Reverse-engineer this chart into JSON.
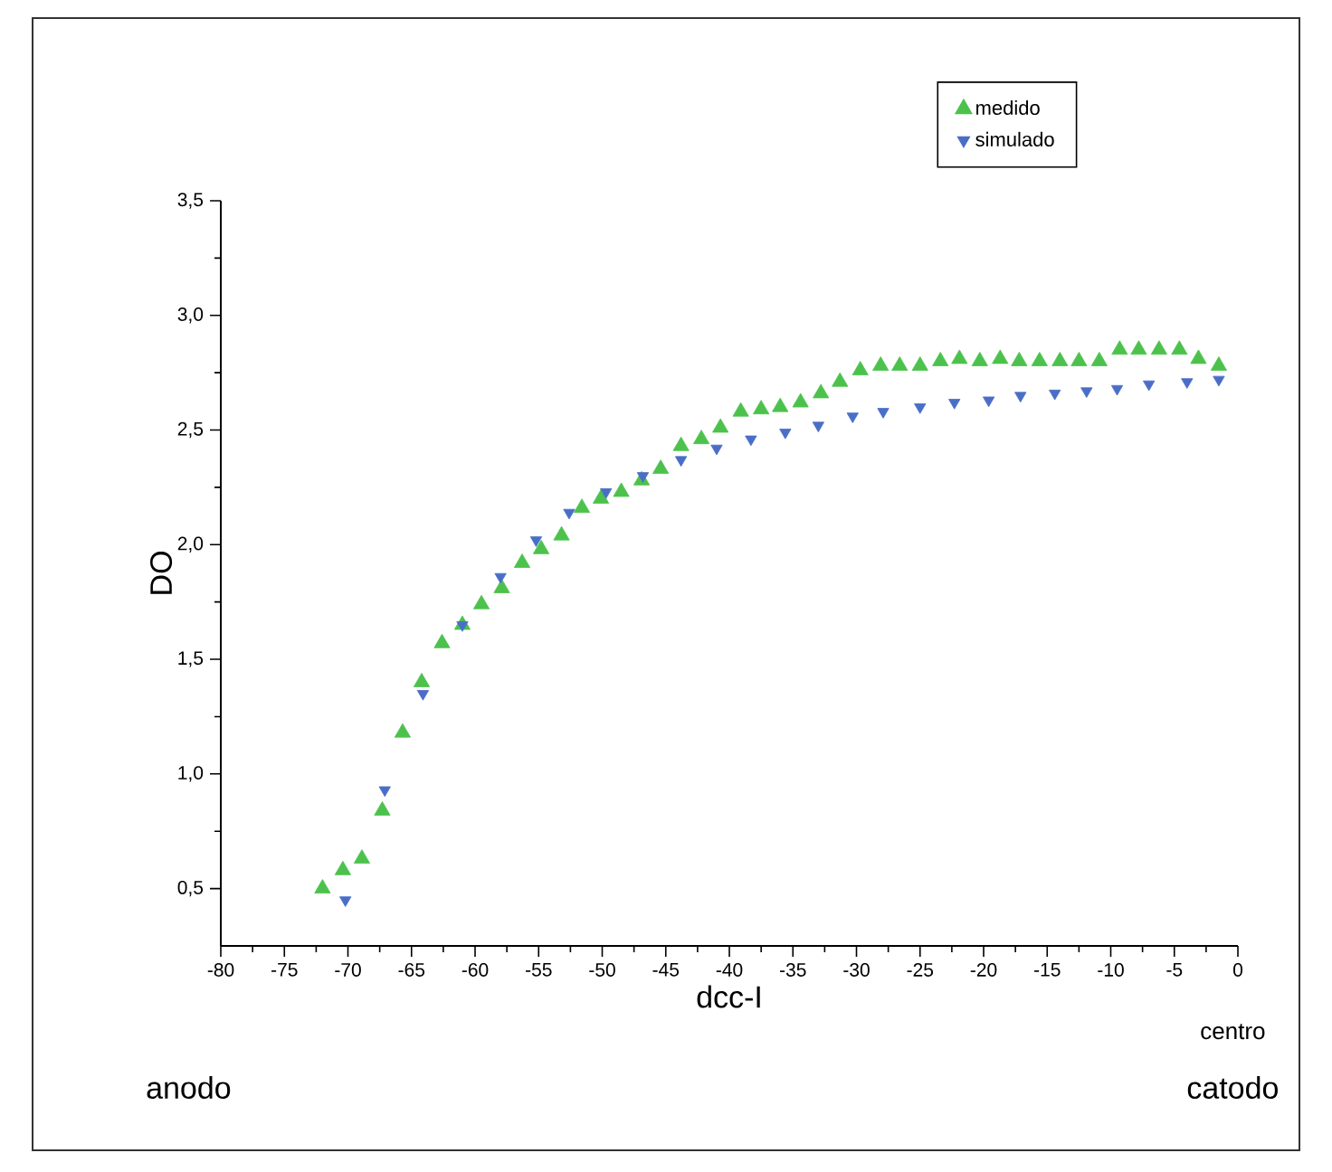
{
  "chart_data": {
    "type": "scatter",
    "xlabel": "dcc-I",
    "ylabel": "DO",
    "annotations": [
      "anodo",
      "centro",
      "catodo"
    ],
    "xlim": [
      -80,
      0
    ],
    "ylim": [
      0.25,
      3.5
    ],
    "xticks": [
      -80,
      -75,
      -70,
      -65,
      -60,
      -55,
      -50,
      -45,
      -40,
      -35,
      -30,
      -25,
      -20,
      -15,
      -10,
      -5,
      0
    ],
    "yticks": [
      {
        "value": 0.5,
        "label": "0,5"
      },
      {
        "value": 1.0,
        "label": "1,0"
      },
      {
        "value": 1.5,
        "label": "1,5"
      },
      {
        "value": 2.0,
        "label": "2,0"
      },
      {
        "value": 2.5,
        "label": "2,5"
      },
      {
        "value": 3.0,
        "label": "3,0"
      },
      {
        "value": 3.5,
        "label": "3,5"
      }
    ],
    "legend": "top right",
    "grid": false,
    "series": [
      {
        "name": "medido",
        "color": "#4cc24c",
        "marker": "triangle",
        "x": [
          -72.0,
          -70.4,
          -68.9,
          -67.3,
          -65.7,
          -64.2,
          -62.6,
          -61.0,
          -59.5,
          -57.9,
          -56.3,
          -54.8,
          -53.2,
          -51.6,
          -50.1,
          -48.5,
          -46.9,
          -45.4,
          -43.8,
          -42.2,
          -40.7,
          -39.1,
          -37.5,
          -36.0,
          -34.4,
          -32.8,
          -31.3,
          -29.7,
          -28.1,
          -26.6,
          -25.0,
          -23.4,
          -21.9,
          -20.3,
          -18.7,
          -17.2,
          -15.6,
          -14.0,
          -12.5,
          -10.9,
          -9.3,
          -7.8,
          -6.2,
          -4.6,
          -3.1,
          -1.5
        ],
        "values": [
          0.5,
          0.58,
          0.63,
          0.84,
          1.18,
          1.4,
          1.57,
          1.65,
          1.74,
          1.81,
          1.92,
          1.98,
          2.04,
          2.16,
          2.2,
          2.23,
          2.28,
          2.33,
          2.43,
          2.46,
          2.51,
          2.58,
          2.59,
          2.6,
          2.62,
          2.66,
          2.71,
          2.76,
          2.78,
          2.78,
          2.78,
          2.8,
          2.81,
          2.8,
          2.81,
          2.8,
          2.8,
          2.8,
          2.8,
          2.8,
          2.85,
          2.85,
          2.85,
          2.85,
          2.81,
          2.78
        ]
      },
      {
        "name": "simulado",
        "color": "#4a6ec8",
        "marker": "triangle-down",
        "x": [
          -70.2,
          -67.1,
          -64.1,
          -61.0,
          -58.0,
          -55.2,
          -52.6,
          -49.7,
          -46.8,
          -43.8,
          -41.0,
          -38.3,
          -35.6,
          -33.0,
          -30.3,
          -27.9,
          -25.0,
          -22.3,
          -19.6,
          -17.1,
          -14.4,
          -11.9,
          -9.5,
          -7.0,
          -4.0,
          -1.5
        ],
        "values": [
          0.45,
          0.93,
          1.35,
          1.65,
          1.86,
          2.02,
          2.14,
          2.23,
          2.3,
          2.37,
          2.42,
          2.46,
          2.49,
          2.52,
          2.56,
          2.58,
          2.6,
          2.62,
          2.63,
          2.65,
          2.66,
          2.67,
          2.68,
          2.7,
          2.71,
          2.72
        ]
      }
    ]
  }
}
